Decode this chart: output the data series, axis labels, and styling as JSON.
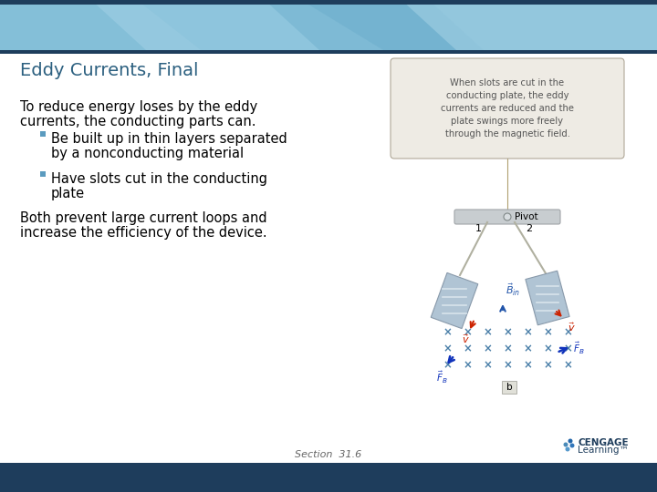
{
  "title": "Eddy Currents, Final",
  "title_color": "#2c6080",
  "title_fontsize": 14,
  "bg_color": "#ffffff",
  "header_light_blue": "#7ab8d4",
  "header_dark_bar": "#1e3d5c",
  "footer_bar_color": "#1e3d5c",
  "body_text_color": "#000000",
  "bullet_color": "#5b9bbf",
  "main_text_line1": "To reduce energy loses by the eddy",
  "main_text_line2": "currents, the conducting parts can.",
  "bullet1_line1": "Be built up in thin layers separated",
  "bullet1_line2": "by a nonconducting material",
  "bullet2_line1": "Have slots cut in the conducting",
  "bullet2_line2": "plate",
  "conclusion_line1": "Both prevent large current loops and",
  "conclusion_line2": "increase the efficiency of the device.",
  "footer_text": "Section  31.6",
  "footer_text_color": "#666666",
  "right_panel_note": "When slots are cut in the\nconducting plate, the eddy\ncurrents are reduced and the\nplate swings more freely\nthrough the magnetic field.",
  "note_bg": "#eeebe4",
  "note_border": "#b0a898",
  "note_text_color": "#555555",
  "cengage_color": "#1e3d5c"
}
